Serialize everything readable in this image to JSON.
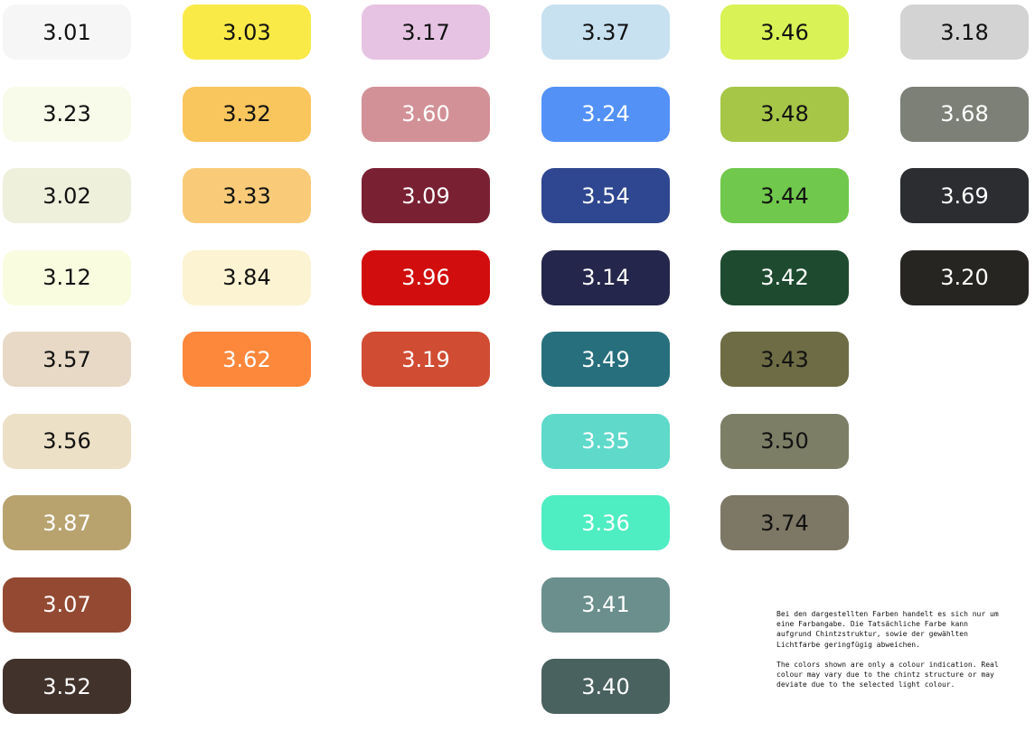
{
  "columns": [
    [
      {
        "code": "3.01",
        "color": "#f6f6f6",
        "text": "#111111"
      },
      {
        "code": "3.23",
        "color": "#f8fbe9",
        "text": "#111111"
      },
      {
        "code": "3.02",
        "color": "#eef0dc",
        "text": "#111111"
      },
      {
        "code": "3.12",
        "color": "#fafce0",
        "text": "#111111"
      },
      {
        "code": "3.57",
        "color": "#e7d9c5",
        "text": "#111111"
      },
      {
        "code": "3.56",
        "color": "#ece0c6",
        "text": "#111111"
      },
      {
        "code": "3.87",
        "color": "#b8a36f",
        "text": "#ffffff"
      },
      {
        "code": "3.07",
        "color": "#944a32",
        "text": "#ffffff"
      },
      {
        "code": "3.52",
        "color": "#41322b",
        "text": "#ffffff"
      }
    ],
    [
      {
        "code": "3.03",
        "color": "#faea48",
        "text": "#111111"
      },
      {
        "code": "3.32",
        "color": "#f9c55d",
        "text": "#111111"
      },
      {
        "code": "3.33",
        "color": "#f9cb79",
        "text": "#111111"
      },
      {
        "code": "3.84",
        "color": "#fcf3d2",
        "text": "#111111"
      },
      {
        "code": "3.62",
        "color": "#fd883c",
        "text": "#ffffff"
      }
    ],
    [
      {
        "code": "3.17",
        "color": "#e6c3e2",
        "text": "#111111"
      },
      {
        "code": "3.60",
        "color": "#d29197",
        "text": "#ffffff"
      },
      {
        "code": "3.09",
        "color": "#7a2033",
        "text": "#ffffff"
      },
      {
        "code": "3.96",
        "color": "#d10d0d",
        "text": "#ffffff"
      },
      {
        "code": "3.19",
        "color": "#d04c33",
        "text": "#ffffff"
      }
    ],
    [
      {
        "code": "3.37",
        "color": "#c8e1f1",
        "text": "#111111"
      },
      {
        "code": "3.24",
        "color": "#5391f7",
        "text": "#ffffff"
      },
      {
        "code": "3.54",
        "color": "#2f4790",
        "text": "#ffffff"
      },
      {
        "code": "3.14",
        "color": "#25264b",
        "text": "#ffffff"
      },
      {
        "code": "3.49",
        "color": "#276f7c",
        "text": "#ffffff"
      },
      {
        "code": "3.35",
        "color": "#5ed9ca",
        "text": "#ffffff"
      },
      {
        "code": "3.36",
        "color": "#4eedc2",
        "text": "#ffffff"
      },
      {
        "code": "3.41",
        "color": "#6a8f8c",
        "text": "#ffffff"
      },
      {
        "code": "3.40",
        "color": "#4a625f",
        "text": "#ffffff"
      }
    ],
    [
      {
        "code": "3.46",
        "color": "#d9f255",
        "text": "#111111"
      },
      {
        "code": "3.48",
        "color": "#a6c648",
        "text": "#111111"
      },
      {
        "code": "3.44",
        "color": "#70c84c",
        "text": "#111111"
      },
      {
        "code": "3.42",
        "color": "#1e4b30",
        "text": "#ffffff"
      },
      {
        "code": "3.43",
        "color": "#6d6c44",
        "text": "#111111"
      },
      {
        "code": "3.50",
        "color": "#7c7f66",
        "text": "#111111"
      },
      {
        "code": "3.74",
        "color": "#7d7765",
        "text": "#111111"
      }
    ],
    [
      {
        "code": "3.18",
        "color": "#d3d3d3",
        "text": "#111111"
      },
      {
        "code": "3.68",
        "color": "#7c8077",
        "text": "#ffffff"
      },
      {
        "code": "3.69",
        "color": "#2c2d31",
        "text": "#ffffff"
      },
      {
        "code": "3.20",
        "color": "#272522",
        "text": "#ffffff"
      }
    ]
  ],
  "note": {
    "de": "Bei den dargestellten Farben handelt es sich nur um eine Farbangabe. Die Tatsächliche Farbe kann aufgrund Chintzstruktur, sowie der gewählten Lichtfarbe geringfügig abweichen.",
    "en": "The colors shown are only a colour indication. Real colour may vary due to the chintz structure or may deviate due to the selected light colour."
  }
}
